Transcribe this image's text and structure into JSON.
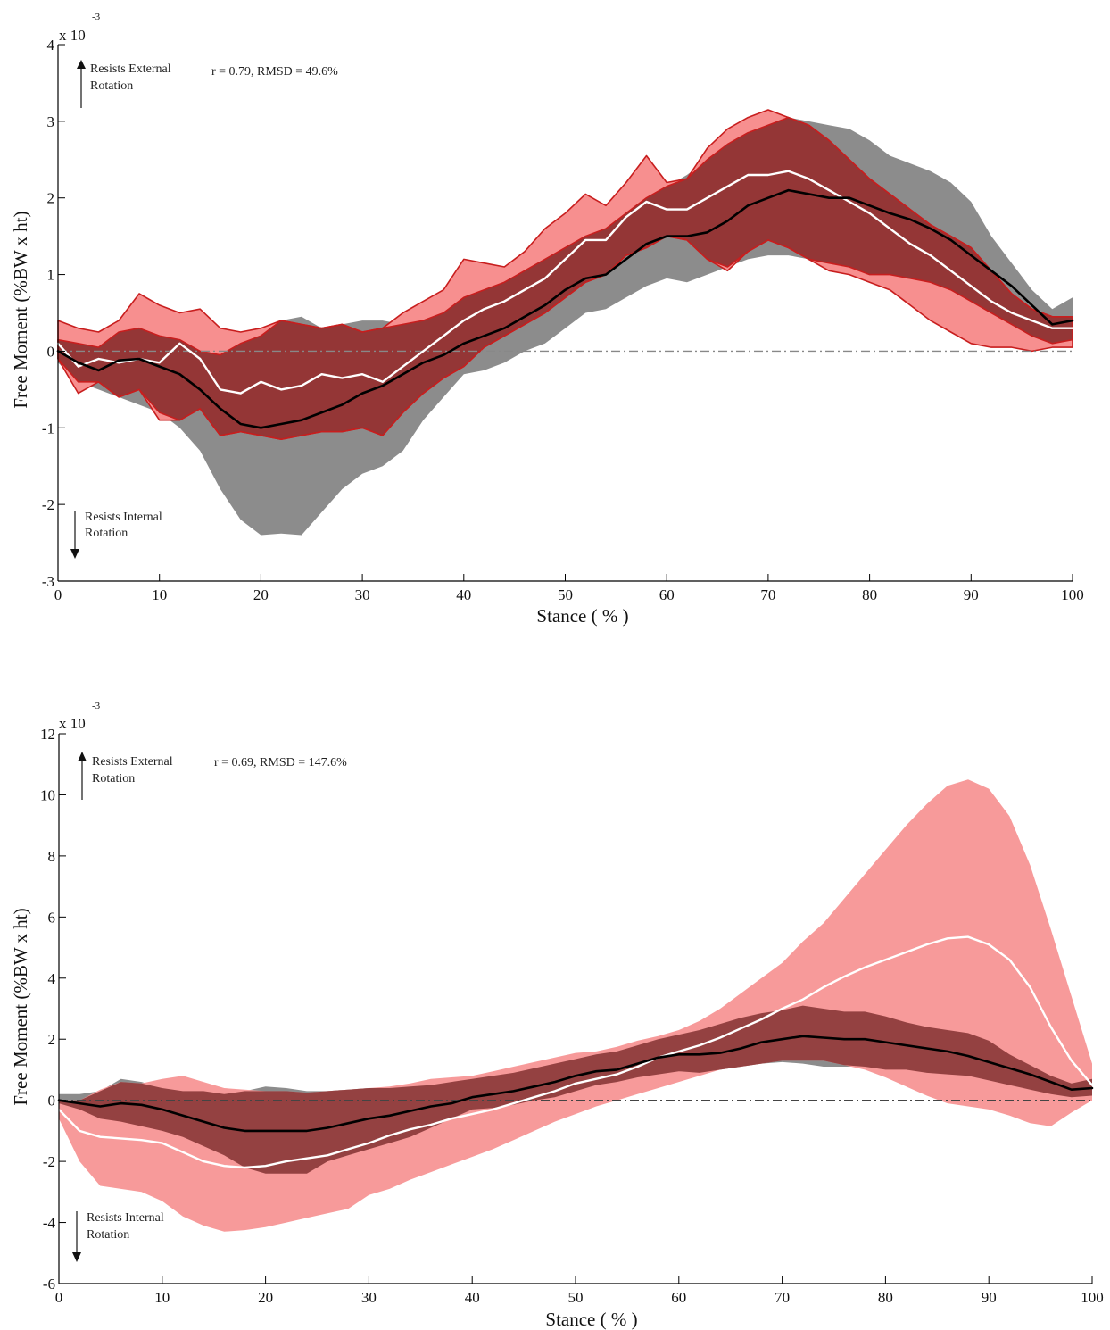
{
  "chart_data": [
    {
      "type": "area",
      "title": "",
      "xlabel": "Stance ( % )",
      "ylabel": "Free Moment (%BW x ht)",
      "y_multiplier": "x 10",
      "y_multiplier_exponent": "-3",
      "xlim": [
        0,
        100
      ],
      "ylim": [
        -3,
        4
      ],
      "xticks": [
        0,
        10,
        20,
        30,
        40,
        50,
        60,
        70,
        80,
        90,
        100
      ],
      "yticks": [
        -3,
        -2,
        -1,
        0,
        1,
        2,
        3,
        4
      ],
      "stats_label": "r = 0.79, RMSD = 49.6%",
      "annot_top": [
        "Resists External",
        "Rotation"
      ],
      "annot_bottom": [
        "Resists Internal",
        "Rotation"
      ],
      "zero_line": "dash-dot",
      "colors": {
        "gray_band": "#8c8c8c",
        "pink_band": "#f78f8f",
        "overlap_band": "#8b2f2f",
        "pink_edge": "#c81e1e",
        "black_line": "#000000",
        "white_line": "#ffffff",
        "zero_line": "#888888"
      },
      "x": [
        0,
        2,
        4,
        6,
        8,
        10,
        12,
        14,
        16,
        18,
        20,
        22,
        24,
        26,
        28,
        30,
        32,
        34,
        36,
        38,
        40,
        42,
        44,
        46,
        48,
        50,
        52,
        54,
        56,
        58,
        60,
        62,
        64,
        66,
        68,
        70,
        72,
        74,
        76,
        78,
        80,
        82,
        84,
        86,
        88,
        90,
        92,
        94,
        96,
        98,
        100
      ],
      "black_mean": [
        0.0,
        -0.15,
        -0.25,
        -0.12,
        -0.1,
        -0.2,
        -0.3,
        -0.5,
        -0.75,
        -0.95,
        -1.0,
        -0.95,
        -0.9,
        -0.8,
        -0.7,
        -0.55,
        -0.45,
        -0.3,
        -0.15,
        -0.05,
        0.1,
        0.2,
        0.3,
        0.45,
        0.6,
        0.8,
        0.95,
        1.0,
        1.2,
        1.4,
        1.5,
        1.5,
        1.55,
        1.7,
        1.9,
        2.0,
        2.1,
        2.05,
        2.0,
        2.0,
        1.9,
        1.8,
        1.72,
        1.6,
        1.45,
        1.25,
        1.05,
        0.85,
        0.6,
        0.35,
        0.4
      ],
      "black_upper": [
        0.15,
        0.1,
        0.05,
        0.25,
        0.3,
        0.2,
        0.15,
        0.0,
        -0.05,
        0.1,
        0.2,
        0.4,
        0.45,
        0.3,
        0.35,
        0.4,
        0.4,
        0.35,
        0.4,
        0.5,
        0.7,
        0.8,
        0.9,
        1.05,
        1.2,
        1.35,
        1.5,
        1.6,
        1.8,
        2.0,
        2.15,
        2.3,
        2.5,
        2.7,
        2.85,
        2.95,
        3.05,
        3.0,
        2.95,
        2.9,
        2.75,
        2.55,
        2.45,
        2.35,
        2.2,
        1.95,
        1.5,
        1.15,
        0.8,
        0.55,
        0.7
      ],
      "black_lower": [
        -0.15,
        -0.4,
        -0.5,
        -0.6,
        -0.7,
        -0.8,
        -1.0,
        -1.3,
        -1.8,
        -2.2,
        -2.4,
        -2.38,
        -2.4,
        -2.1,
        -1.8,
        -1.6,
        -1.5,
        -1.3,
        -0.9,
        -0.6,
        -0.3,
        -0.25,
        -0.15,
        0.0,
        0.1,
        0.3,
        0.5,
        0.55,
        0.7,
        0.85,
        0.95,
        0.9,
        1.0,
        1.1,
        1.2,
        1.25,
        1.25,
        1.2,
        1.15,
        1.1,
        1.0,
        1.0,
        0.95,
        0.9,
        0.8,
        0.65,
        0.5,
        0.35,
        0.2,
        0.1,
        0.15
      ],
      "white_mean": [
        0.1,
        -0.2,
        -0.1,
        -0.15,
        -0.1,
        -0.15,
        0.1,
        -0.1,
        -0.5,
        -0.55,
        -0.4,
        -0.5,
        -0.45,
        -0.3,
        -0.35,
        -0.3,
        -0.4,
        -0.2,
        0.0,
        0.2,
        0.4,
        0.55,
        0.65,
        0.8,
        0.95,
        1.2,
        1.45,
        1.45,
        1.75,
        1.95,
        1.85,
        1.85,
        2.0,
        2.15,
        2.3,
        2.3,
        2.35,
        2.25,
        2.1,
        1.95,
        1.8,
        1.6,
        1.4,
        1.25,
        1.05,
        0.85,
        0.65,
        0.5,
        0.4,
        0.3,
        0.3
      ],
      "white_upper": [
        0.4,
        0.3,
        0.25,
        0.4,
        0.75,
        0.6,
        0.5,
        0.55,
        0.3,
        0.25,
        0.3,
        0.4,
        0.35,
        0.3,
        0.35,
        0.25,
        0.3,
        0.5,
        0.65,
        0.8,
        1.2,
        1.15,
        1.1,
        1.3,
        1.6,
        1.8,
        2.05,
        1.9,
        2.2,
        2.55,
        2.2,
        2.25,
        2.65,
        2.9,
        3.05,
        3.15,
        3.05,
        2.95,
        2.75,
        2.5,
        2.25,
        2.05,
        1.85,
        1.65,
        1.5,
        1.35,
        1.05,
        0.75,
        0.55,
        0.45,
        0.45
      ],
      "white_lower": [
        -0.1,
        -0.55,
        -0.4,
        -0.6,
        -0.5,
        -0.9,
        -0.9,
        -0.75,
        -1.1,
        -1.05,
        -1.1,
        -1.15,
        -1.1,
        -1.05,
        -1.05,
        -1.0,
        -1.1,
        -0.8,
        -0.55,
        -0.35,
        -0.2,
        0.05,
        0.2,
        0.35,
        0.5,
        0.7,
        0.9,
        1.0,
        1.25,
        1.35,
        1.5,
        1.45,
        1.2,
        1.05,
        1.3,
        1.45,
        1.35,
        1.2,
        1.05,
        1.0,
        0.9,
        0.8,
        0.6,
        0.4,
        0.25,
        0.1,
        0.05,
        0.05,
        0.0,
        0.05,
        0.05
      ]
    },
    {
      "type": "area",
      "title": "",
      "xlabel": "Stance ( % )",
      "ylabel": "Free Moment (%BW x ht)",
      "y_multiplier": "x 10",
      "y_multiplier_exponent": "-3",
      "xlim": [
        0,
        100
      ],
      "ylim": [
        -6,
        12
      ],
      "xticks": [
        0,
        10,
        20,
        30,
        40,
        50,
        60,
        70,
        80,
        90,
        100
      ],
      "yticks": [
        -6,
        -4,
        -2,
        0,
        2,
        4,
        6,
        8,
        10,
        12
      ],
      "stats_label": "r = 0.69, RMSD = 147.6%",
      "annot_top": [
        "Resists External",
        "Rotation"
      ],
      "annot_bottom": [
        "Resists Internal",
        "Rotation"
      ],
      "zero_line": "dash-dot",
      "colors": {
        "gray_band": "#8c8c8c",
        "pink_band": "#f79a9a",
        "overlap_band": "#7a2a2a",
        "black_line": "#000000",
        "white_line": "#ffffff",
        "zero_line": "#444444"
      },
      "x": [
        0,
        2,
        4,
        6,
        8,
        10,
        12,
        14,
        16,
        18,
        20,
        22,
        24,
        26,
        28,
        30,
        32,
        34,
        36,
        38,
        40,
        42,
        44,
        46,
        48,
        50,
        52,
        54,
        56,
        58,
        60,
        62,
        64,
        66,
        68,
        70,
        72,
        74,
        76,
        78,
        80,
        82,
        84,
        86,
        88,
        90,
        92,
        94,
        96,
        98,
        100
      ],
      "black_mean": [
        0.0,
        -0.1,
        -0.2,
        -0.1,
        -0.15,
        -0.3,
        -0.5,
        -0.7,
        -0.9,
        -1.0,
        -1.0,
        -1.0,
        -1.0,
        -0.9,
        -0.75,
        -0.6,
        -0.5,
        -0.35,
        -0.2,
        -0.1,
        0.1,
        0.2,
        0.3,
        0.45,
        0.6,
        0.8,
        0.95,
        1.0,
        1.2,
        1.4,
        1.5,
        1.5,
        1.55,
        1.7,
        1.9,
        2.0,
        2.1,
        2.05,
        2.0,
        2.0,
        1.9,
        1.8,
        1.7,
        1.6,
        1.45,
        1.25,
        1.05,
        0.85,
        0.6,
        0.35,
        0.4
      ],
      "black_upper": [
        0.2,
        0.2,
        0.3,
        0.7,
        0.6,
        0.4,
        0.3,
        0.3,
        0.2,
        0.3,
        0.45,
        0.4,
        0.3,
        0.3,
        0.35,
        0.4,
        0.4,
        0.45,
        0.5,
        0.6,
        0.7,
        0.8,
        0.9,
        1.05,
        1.2,
        1.35,
        1.5,
        1.6,
        1.8,
        2.0,
        2.15,
        2.3,
        2.5,
        2.7,
        2.85,
        2.95,
        3.1,
        3.0,
        2.9,
        2.9,
        2.75,
        2.55,
        2.4,
        2.3,
        2.2,
        1.95,
        1.5,
        1.15,
        0.8,
        0.55,
        0.7
      ],
      "black_lower": [
        -0.1,
        -0.3,
        -0.6,
        -0.7,
        -0.85,
        -1.0,
        -1.2,
        -1.5,
        -1.8,
        -2.2,
        -2.4,
        -2.4,
        -2.4,
        -2.0,
        -1.8,
        -1.6,
        -1.4,
        -1.2,
        -0.9,
        -0.6,
        -0.3,
        -0.25,
        -0.15,
        0.0,
        0.1,
        0.3,
        0.5,
        0.6,
        0.75,
        0.85,
        0.95,
        0.9,
        1.0,
        1.1,
        1.2,
        1.25,
        1.2,
        1.1,
        1.1,
        1.1,
        1.0,
        1.0,
        0.9,
        0.85,
        0.8,
        0.65,
        0.5,
        0.35,
        0.2,
        0.1,
        0.15
      ],
      "white_mean": [
        -0.3,
        -1.0,
        -1.2,
        -1.25,
        -1.3,
        -1.4,
        -1.7,
        -2.0,
        -2.15,
        -2.2,
        -2.15,
        -2.0,
        -1.9,
        -1.8,
        -1.6,
        -1.4,
        -1.15,
        -0.95,
        -0.8,
        -0.6,
        -0.45,
        -0.3,
        -0.1,
        0.1,
        0.3,
        0.55,
        0.7,
        0.85,
        1.1,
        1.4,
        1.6,
        1.8,
        2.05,
        2.35,
        2.65,
        3.0,
        3.3,
        3.7,
        4.05,
        4.35,
        4.6,
        4.85,
        5.1,
        5.3,
        5.35,
        5.1,
        4.6,
        3.7,
        2.4,
        1.3,
        0.5
      ],
      "white_upper": [
        0.0,
        0.0,
        0.35,
        0.6,
        0.55,
        0.7,
        0.8,
        0.6,
        0.4,
        0.35,
        0.3,
        0.3,
        0.25,
        0.3,
        0.35,
        0.4,
        0.45,
        0.55,
        0.7,
        0.75,
        0.8,
        0.95,
        1.1,
        1.25,
        1.4,
        1.55,
        1.6,
        1.75,
        1.95,
        2.1,
        2.3,
        2.6,
        3.0,
        3.5,
        4.0,
        4.5,
        5.2,
        5.8,
        6.6,
        7.4,
        8.2,
        9.0,
        9.7,
        10.3,
        10.5,
        10.2,
        9.3,
        7.7,
        5.6,
        3.4,
        1.2
      ],
      "white_lower": [
        -0.6,
        -2.0,
        -2.8,
        -2.9,
        -3.0,
        -3.3,
        -3.8,
        -4.1,
        -4.3,
        -4.25,
        -4.15,
        -4.0,
        -3.85,
        -3.7,
        -3.55,
        -3.1,
        -2.9,
        -2.6,
        -2.35,
        -2.1,
        -1.85,
        -1.6,
        -1.3,
        -1.0,
        -0.7,
        -0.45,
        -0.2,
        0.0,
        0.2,
        0.4,
        0.6,
        0.8,
        1.0,
        1.1,
        1.2,
        1.3,
        1.3,
        1.3,
        1.15,
        1.0,
        0.75,
        0.45,
        0.15,
        -0.1,
        -0.2,
        -0.3,
        -0.5,
        -0.75,
        -0.85,
        -0.4,
        0.0
      ]
    }
  ]
}
